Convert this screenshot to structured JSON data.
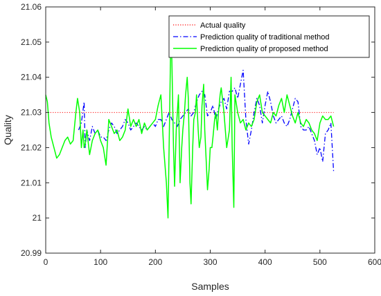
{
  "chart_data": {
    "type": "line",
    "xlabel": "Samples",
    "ylabel": "Quality",
    "xlim": [
      0,
      600
    ],
    "ylim": [
      20.99,
      21.06
    ],
    "xticks": [
      0,
      100,
      200,
      300,
      400,
      500,
      600
    ],
    "xtick_labels": [
      "0",
      "100",
      "200",
      "300",
      "400",
      "500",
      "600"
    ],
    "yticks": [
      20.99,
      21.0,
      21.01,
      21.02,
      21.03,
      21.04,
      21.05,
      21.06
    ],
    "ytick_labels": [
      "20.99",
      "21",
      "21.01",
      "21.02",
      "21.03",
      "21.04",
      "21.05",
      "21.06"
    ],
    "grid": false,
    "legend_position": "top-right",
    "series": [
      {
        "name": "Actual quality",
        "color": "#ff0000",
        "style": "dotted",
        "x": [
          0,
          525
        ],
        "y": [
          21.03,
          21.03
        ]
      },
      {
        "name": "Prediction quality of traditional method",
        "color": "#0000ff",
        "style": "dashdot",
        "x": [
          60,
          65,
          70,
          72,
          75,
          80,
          85,
          90,
          95,
          100,
          105,
          110,
          115,
          120,
          125,
          130,
          135,
          140,
          145,
          150,
          155,
          160,
          165,
          170,
          175,
          180,
          185,
          190,
          195,
          200,
          205,
          210,
          215,
          220,
          225,
          230,
          235,
          240,
          245,
          250,
          255,
          260,
          265,
          270,
          275,
          280,
          285,
          290,
          295,
          300,
          305,
          310,
          315,
          320,
          325,
          330,
          335,
          340,
          345,
          350,
          355,
          360,
          365,
          370,
          375,
          380,
          385,
          390,
          395,
          400,
          405,
          410,
          415,
          420,
          425,
          430,
          435,
          440,
          445,
          450,
          455,
          460,
          465,
          470,
          475,
          480,
          485,
          490,
          495,
          500,
          505,
          510,
          515,
          520,
          525
        ],
        "y": [
          21.025,
          21.027,
          21.033,
          21.02,
          21.025,
          21.022,
          21.026,
          21.024,
          21.025,
          21.023,
          21.023,
          21.022,
          21.025,
          21.027,
          21.026,
          21.024,
          21.025,
          21.026,
          21.028,
          21.027,
          21.025,
          21.026,
          21.027,
          21.026,
          21.025,
          21.026,
          21.025,
          21.026,
          21.027,
          21.026,
          21.028,
          21.028,
          21.026,
          21.028,
          21.03,
          21.028,
          21.027,
          21.026,
          21.028,
          21.029,
          21.03,
          21.031,
          21.029,
          21.03,
          21.033,
          21.035,
          21.036,
          21.035,
          21.029,
          21.03,
          21.032,
          21.028,
          21.031,
          21.033,
          21.034,
          21.031,
          21.036,
          21.036,
          21.037,
          21.034,
          21.038,
          21.042,
          21.028,
          21.021,
          21.025,
          21.03,
          21.034,
          21.032,
          21.027,
          21.032,
          21.036,
          21.033,
          21.029,
          21.027,
          21.028,
          21.029,
          21.027,
          21.026,
          21.028,
          21.031,
          21.034,
          21.033,
          21.026,
          21.025,
          21.025,
          21.026,
          21.024,
          21.022,
          21.018,
          21.02,
          21.016,
          21.024,
          21.025,
          21.027,
          21.013
        ]
      },
      {
        "name": "Prediction quality of proposed method",
        "color": "#00ff00",
        "style": "solid",
        "x": [
          0,
          3,
          6,
          10,
          15,
          20,
          25,
          30,
          35,
          40,
          45,
          50,
          55,
          58,
          62,
          65,
          68,
          70,
          72,
          75,
          80,
          85,
          90,
          95,
          100,
          105,
          110,
          112,
          115,
          120,
          125,
          130,
          135,
          140,
          145,
          150,
          155,
          160,
          165,
          170,
          175,
          180,
          185,
          190,
          195,
          200,
          205,
          210,
          215,
          220,
          223,
          225,
          228,
          230,
          233,
          235,
          238,
          240,
          242,
          245,
          248,
          250,
          253,
          255,
          258,
          260,
          263,
          265,
          268,
          270,
          273,
          275,
          278,
          280,
          283,
          285,
          288,
          290,
          293,
          295,
          298,
          300,
          303,
          305,
          308,
          310,
          313,
          315,
          318,
          320,
          325,
          330,
          335,
          338,
          340,
          343,
          345,
          350,
          355,
          360,
          365,
          370,
          375,
          380,
          385,
          390,
          395,
          400,
          405,
          410,
          415,
          420,
          425,
          430,
          435,
          440,
          445,
          450,
          455,
          460,
          465,
          470,
          475,
          480,
          485,
          490,
          495,
          500,
          505,
          510,
          515,
          520,
          525
        ],
        "y": [
          21.035,
          21.033,
          21.027,
          21.023,
          21.02,
          21.017,
          21.018,
          21.02,
          21.022,
          21.023,
          21.021,
          21.022,
          21.03,
          21.034,
          21.03,
          21.02,
          21.025,
          21.02,
          21.021,
          21.025,
          21.018,
          21.022,
          21.024,
          21.025,
          21.022,
          21.02,
          21.015,
          21.02,
          21.028,
          21.026,
          21.024,
          21.025,
          21.022,
          21.023,
          21.025,
          21.031,
          21.026,
          21.028,
          21.026,
          21.028,
          21.024,
          21.027,
          21.025,
          21.026,
          21.027,
          21.028,
          21.032,
          21.035,
          21.02,
          21.01,
          21.0,
          21.02,
          21.051,
          21.045,
          21.02,
          21.009,
          21.025,
          21.03,
          21.035,
          21.01,
          21.02,
          21.025,
          21.03,
          21.035,
          21.04,
          21.034,
          21.01,
          21.004,
          21.02,
          21.028,
          21.03,
          21.035,
          21.025,
          21.02,
          21.023,
          21.032,
          21.038,
          21.025,
          21.015,
          21.008,
          21.014,
          21.02,
          21.02,
          21.023,
          21.028,
          21.03,
          21.025,
          21.03,
          21.035,
          21.037,
          21.03,
          21.02,
          21.025,
          21.04,
          21.02,
          21.003,
          21.035,
          21.03,
          21.027,
          21.028,
          21.025,
          21.027,
          21.026,
          21.028,
          21.033,
          21.035,
          21.03,
          21.029,
          21.028,
          21.027,
          21.03,
          21.029,
          21.032,
          21.034,
          21.03,
          21.035,
          21.032,
          21.029,
          21.027,
          21.03,
          21.027,
          21.026,
          21.028,
          21.027,
          21.025,
          21.024,
          21.022,
          21.027,
          21.029,
          21.028,
          21.028,
          21.029,
          21.026
        ]
      }
    ]
  }
}
